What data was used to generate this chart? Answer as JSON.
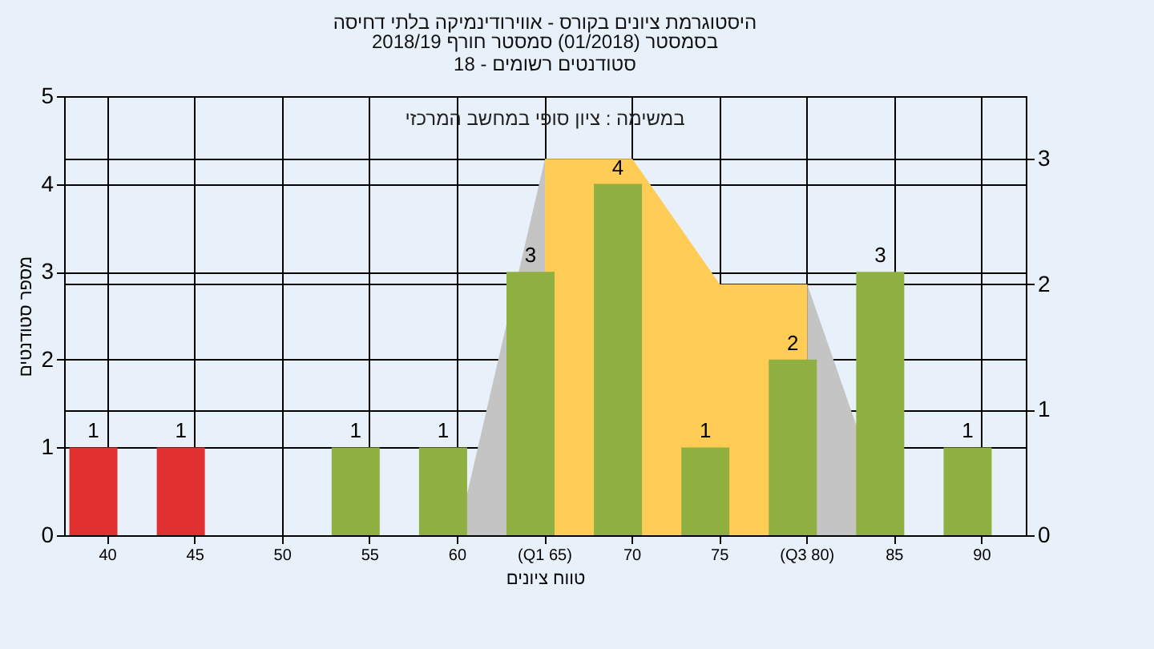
{
  "chart_data": {
    "type": "bar",
    "title": "היסטוגרמת ציונים בקורס - אווירודינמיקה בלתי דחיסה",
    "subtitle": "בסמסטר (01/2018) סמסטר חורף 2018/19\nסטודנטים רשומים - 18",
    "xlabel": "טווח ציונים",
    "ylabel": "מספר סטודנטים",
    "annotations": [
      "במשימה : ציון סופי במחשב המרכזי"
    ],
    "categories": [
      "40",
      "45",
      "50",
      "55",
      "60",
      "(Q1 65)",
      "70",
      "75",
      "(Q3 80)",
      "85",
      "90"
    ],
    "ylim": [
      0,
      5
    ],
    "yticks": [
      0,
      1,
      2,
      3,
      4,
      5
    ],
    "y2lim": [
      0,
      3.5
    ],
    "y2ticks": [
      0,
      1,
      2,
      3
    ],
    "grid": true,
    "series": [
      {
        "type": "area",
        "axis": "y2",
        "color": "#c4c4c4",
        "values": [
          null,
          null,
          null,
          null,
          0,
          3,
          null,
          null,
          null,
          null,
          null
        ]
      },
      {
        "type": "area",
        "axis": "y2",
        "color": "#c4c4c4",
        "values": [
          null,
          null,
          null,
          null,
          null,
          null,
          null,
          null,
          2,
          0,
          null
        ]
      },
      {
        "type": "area",
        "axis": "y2",
        "color": "#ffcc55",
        "values": [
          null,
          null,
          null,
          null,
          null,
          3,
          3,
          2,
          2,
          null,
          null
        ]
      },
      {
        "colors": [
          "#e03030",
          "#e03030",
          "#8fb040",
          "#8fb040",
          "#8fb040",
          "#8fb040",
          "#8fb040",
          "#8fb040",
          "#8fb040",
          "#8fb040",
          "#8fb040"
        ],
        "values": [
          1,
          1,
          0,
          1,
          1,
          3,
          4,
          1,
          2,
          3,
          1
        ],
        "value_labels": [
          "1",
          "1",
          null,
          "1",
          "1",
          "3",
          "4",
          "1",
          "2",
          "3",
          "1"
        ]
      }
    ]
  }
}
